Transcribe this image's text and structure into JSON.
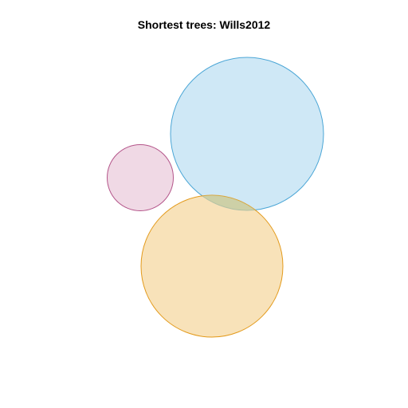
{
  "title": "Shortest trees: Wills2012",
  "sets": [
    {
      "id": "blue",
      "fill": "#9fd1ee",
      "stroke": "#4ba6d6"
    },
    {
      "id": "pink",
      "fill": "#e3b9d0",
      "stroke": "#b4558a"
    },
    {
      "id": "orange",
      "fill": "#f3ce8a",
      "stroke": "#e39a1b"
    }
  ],
  "overlap_fill": "#b9c99a"
}
